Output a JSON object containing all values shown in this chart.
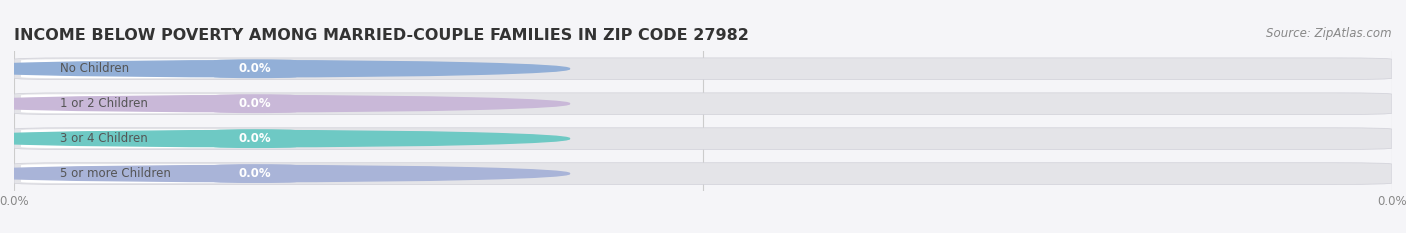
{
  "title": "INCOME BELOW POVERTY AMONG MARRIED-COUPLE FAMILIES IN ZIP CODE 27982",
  "source": "Source: ZipAtlas.com",
  "categories": [
    "No Children",
    "1 or 2 Children",
    "3 or 4 Children",
    "5 or more Children"
  ],
  "values": [
    0.0,
    0.0,
    0.0,
    0.0
  ],
  "bar_colors": [
    "#92afd7",
    "#c9b8d8",
    "#6ec9c4",
    "#a9b4d8"
  ],
  "bar_bg_color": "#e4e4e8",
  "white_pill_color": "#ffffff",
  "background_color": "#f5f5f8",
  "label_text_color": "#555555",
  "value_text_color": "#ffffff",
  "tick_text_color": "#888888",
  "title_color": "#333333",
  "source_color": "#888888",
  "title_fontsize": 11.5,
  "source_fontsize": 8.5,
  "label_fontsize": 8.5,
  "value_fontsize": 8.5,
  "tick_fontsize": 8.5,
  "grid_color": "#cccccc"
}
